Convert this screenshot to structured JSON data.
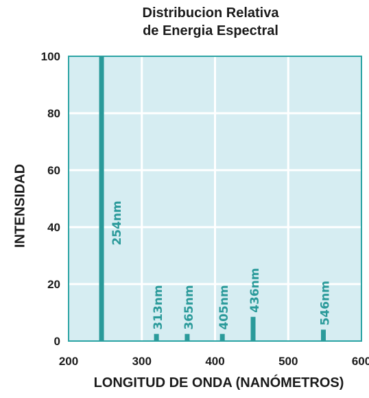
{
  "chart_data": {
    "type": "bar",
    "title_lines": [
      "Distribucion Relativa",
      "de Energia Espectral"
    ],
    "xlabel": "LONGITUD DE ONDA (NANÓMETROS)",
    "ylabel": "INTENSIDAD",
    "xlim": [
      200,
      600
    ],
    "ylim": [
      0,
      100
    ],
    "x_ticks": [
      "200",
      "300",
      "400",
      "500",
      "600"
    ],
    "y_ticks": [
      "0",
      "20",
      "40",
      "60",
      "80",
      "100"
    ],
    "grid": true,
    "series": [
      {
        "points": [
          {
            "x": 245,
            "y": 100,
            "label": "254nm"
          },
          {
            "x": 320,
            "y": 2.5,
            "label": "313nm"
          },
          {
            "x": 362,
            "y": 2.5,
            "label": "365nm"
          },
          {
            "x": 410,
            "y": 2.5,
            "label": "405nm"
          },
          {
            "x": 452,
            "y": 8.5,
            "label": "436nm"
          },
          {
            "x": 548,
            "y": 4,
            "label": "546nm"
          }
        ]
      }
    ],
    "colors": {
      "plot_background": "#d6edf2",
      "grid": "#ffffff",
      "bar": "#2a9a9a",
      "frame": "#2aa3a3",
      "text": "#1a1a1a"
    }
  }
}
